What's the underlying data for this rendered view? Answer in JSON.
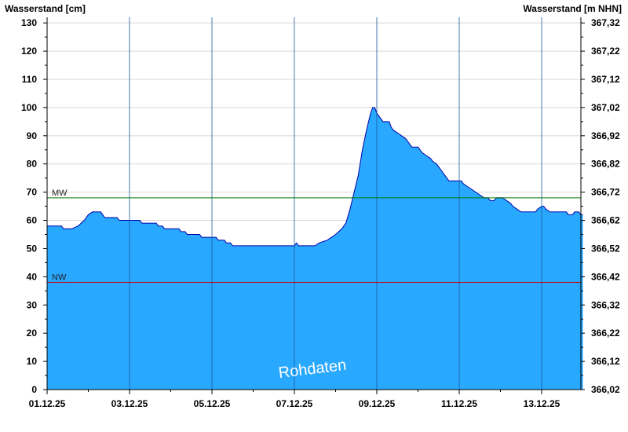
{
  "chart_data": {
    "type": "area",
    "ylabel_left": "Wasserstand [cm]",
    "ylabel_right": "Wasserstand [m NHN]",
    "watermark": "Rohdaten",
    "x_ticks": [
      "01.12.25",
      "03.12.25",
      "05.12.25",
      "07.12.25",
      "09.12.25",
      "11.12.25",
      "13.12.25"
    ],
    "x_tick_days": [
      0,
      2,
      4,
      6,
      8,
      10,
      12
    ],
    "x_range_days": [
      0,
      13
    ],
    "ylim_left": [
      0,
      132
    ],
    "yticks_left": [
      "0",
      "10",
      "20",
      "30",
      "40",
      "50",
      "60",
      "70",
      "80",
      "90",
      "100",
      "110",
      "120",
      "130"
    ],
    "yticks_right": [
      "366,02",
      "366,12",
      "366,22",
      "366,32",
      "366,42",
      "366,52",
      "366,62",
      "366,72",
      "366,82",
      "366,92",
      "367,02",
      "367,12",
      "367,22",
      "367,32"
    ],
    "grid": true,
    "series": [
      {
        "color": "#29a8ff",
        "outline": "#0000aa",
        "points": [
          [
            0.0,
            58
          ],
          [
            0.35,
            58
          ],
          [
            0.4,
            57
          ],
          [
            0.6,
            57
          ],
          [
            0.75,
            58
          ],
          [
            0.9,
            60
          ],
          [
            1.0,
            62
          ],
          [
            1.1,
            63
          ],
          [
            1.3,
            63
          ],
          [
            1.35,
            62
          ],
          [
            1.4,
            61
          ],
          [
            1.7,
            61
          ],
          [
            1.75,
            60
          ],
          [
            2.25,
            60
          ],
          [
            2.3,
            59
          ],
          [
            2.65,
            59
          ],
          [
            2.7,
            58
          ],
          [
            2.8,
            58
          ],
          [
            2.85,
            57
          ],
          [
            3.2,
            57
          ],
          [
            3.25,
            56
          ],
          [
            3.35,
            56
          ],
          [
            3.4,
            55
          ],
          [
            3.7,
            55
          ],
          [
            3.75,
            54
          ],
          [
            4.1,
            54
          ],
          [
            4.15,
            53
          ],
          [
            4.3,
            53
          ],
          [
            4.35,
            52
          ],
          [
            4.45,
            52
          ],
          [
            4.5,
            51
          ],
          [
            5.0,
            51
          ],
          [
            5.5,
            51
          ],
          [
            5.95,
            51
          ],
          [
            6.0,
            51
          ],
          [
            6.05,
            52
          ],
          [
            6.1,
            51
          ],
          [
            6.5,
            51
          ],
          [
            6.6,
            52
          ],
          [
            6.8,
            53
          ],
          [
            6.9,
            54
          ],
          [
            7.0,
            55
          ],
          [
            7.15,
            57
          ],
          [
            7.25,
            59
          ],
          [
            7.35,
            64
          ],
          [
            7.45,
            70
          ],
          [
            7.55,
            76
          ],
          [
            7.65,
            85
          ],
          [
            7.75,
            92
          ],
          [
            7.85,
            98
          ],
          [
            7.9,
            100
          ],
          [
            7.95,
            100
          ],
          [
            8.0,
            98
          ],
          [
            8.05,
            97
          ],
          [
            8.1,
            96
          ],
          [
            8.15,
            95
          ],
          [
            8.3,
            95
          ],
          [
            8.35,
            93
          ],
          [
            8.4,
            92
          ],
          [
            8.5,
            91
          ],
          [
            8.6,
            90
          ],
          [
            8.7,
            89
          ],
          [
            8.75,
            88
          ],
          [
            8.8,
            87
          ],
          [
            8.85,
            86
          ],
          [
            9.0,
            86
          ],
          [
            9.1,
            84
          ],
          [
            9.2,
            83
          ],
          [
            9.3,
            82
          ],
          [
            9.35,
            81
          ],
          [
            9.45,
            80
          ],
          [
            9.5,
            79
          ],
          [
            9.6,
            77
          ],
          [
            9.7,
            75
          ],
          [
            9.75,
            74
          ],
          [
            10.05,
            74
          ],
          [
            10.1,
            73
          ],
          [
            10.2,
            72
          ],
          [
            10.3,
            71
          ],
          [
            10.4,
            70
          ],
          [
            10.5,
            69
          ],
          [
            10.6,
            68
          ],
          [
            10.7,
            68
          ],
          [
            10.75,
            67
          ],
          [
            10.85,
            67
          ],
          [
            10.9,
            68
          ],
          [
            11.05,
            68
          ],
          [
            11.15,
            67
          ],
          [
            11.25,
            66
          ],
          [
            11.3,
            65
          ],
          [
            11.4,
            64
          ],
          [
            11.5,
            63
          ],
          [
            11.85,
            63
          ],
          [
            11.9,
            64
          ],
          [
            12.0,
            65
          ],
          [
            12.05,
            65
          ],
          [
            12.1,
            64
          ],
          [
            12.2,
            63
          ],
          [
            12.6,
            63
          ],
          [
            12.65,
            62
          ],
          [
            12.75,
            62
          ],
          [
            12.8,
            63
          ],
          [
            12.9,
            63
          ],
          [
            12.95,
            62
          ],
          [
            13.0,
            62
          ]
        ]
      }
    ],
    "reference_lines": [
      {
        "label": "MW",
        "value": 68,
        "color": "#007700"
      },
      {
        "label": "NW",
        "value": 38,
        "color": "#cc0000"
      }
    ]
  }
}
